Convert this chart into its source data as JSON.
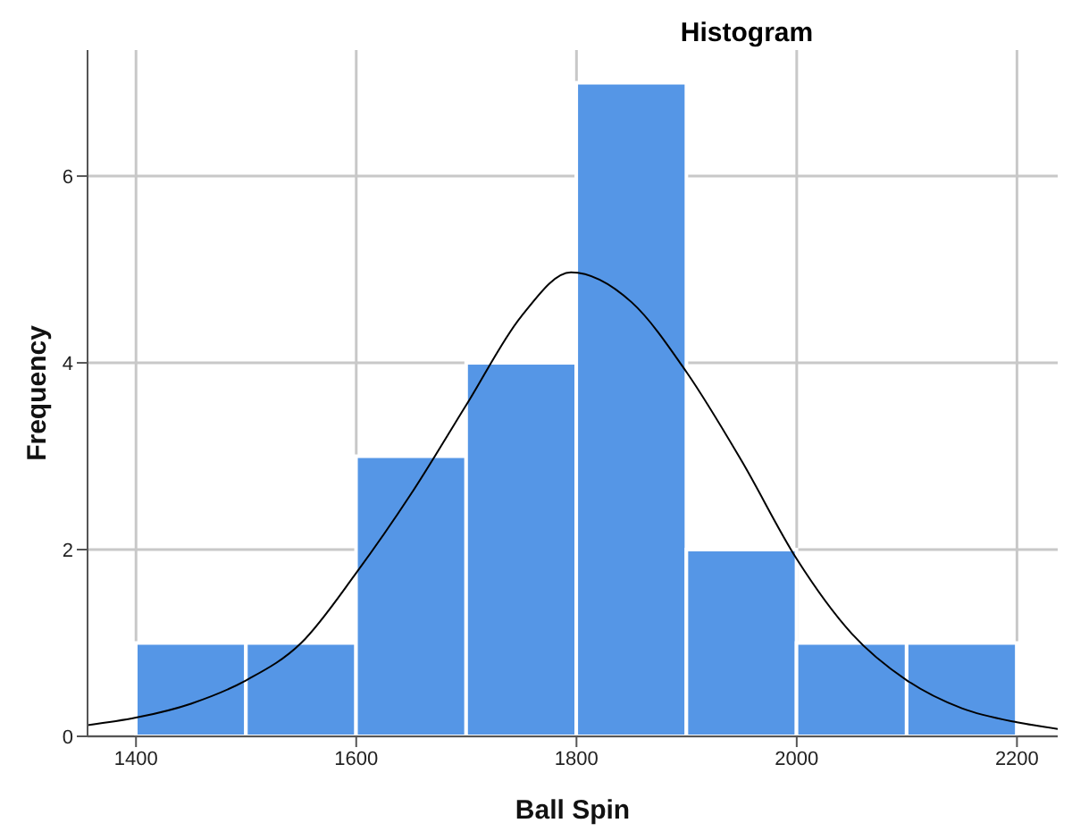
{
  "chart_data": {
    "type": "histogram",
    "title": "Histogram",
    "xlabel": "Ball Spin",
    "ylabel": "Frequency",
    "bins": [
      1400,
      1500,
      1600,
      1700,
      1800,
      1900,
      2000,
      2100,
      2200
    ],
    "values": [
      1,
      1,
      3,
      4,
      7,
      2,
      1,
      1
    ],
    "color": "#5596e6",
    "xlim": [
      1356,
      2237
    ],
    "xticks": [
      1400,
      1600,
      1800,
      2000,
      2200
    ],
    "ylim": [
      0,
      7.35
    ],
    "yticks": [
      0,
      2,
      4,
      6
    ],
    "grid": true,
    "series": [
      {
        "type": "line",
        "color": "#000000",
        "x": [
          1356,
          1400,
          1450,
          1500,
          1550,
          1600,
          1650,
          1700,
          1750,
          1795,
          1850,
          1900,
          1950,
          2000,
          2050,
          2100,
          2150,
          2200,
          2237
        ],
        "values": [
          0.12,
          0.2,
          0.35,
          0.6,
          1.0,
          1.75,
          2.6,
          3.55,
          4.5,
          4.97,
          4.65,
          3.9,
          2.95,
          1.9,
          1.1,
          0.6,
          0.3,
          0.15,
          0.08
        ]
      }
    ]
  }
}
